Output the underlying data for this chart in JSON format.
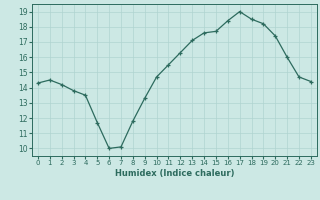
{
  "x": [
    0,
    1,
    2,
    3,
    4,
    5,
    6,
    7,
    8,
    9,
    10,
    11,
    12,
    13,
    14,
    15,
    16,
    17,
    18,
    19,
    20,
    21,
    22,
    23
  ],
  "y": [
    14.3,
    14.5,
    14.2,
    13.8,
    13.5,
    11.7,
    10.0,
    10.1,
    11.8,
    13.3,
    14.7,
    15.5,
    16.3,
    17.1,
    17.6,
    17.7,
    18.4,
    19.0,
    18.5,
    18.2,
    17.4,
    16.0,
    14.7,
    14.4
  ],
  "xlabel": "Humidex (Indice chaleur)",
  "xlim": [
    -0.5,
    23.5
  ],
  "ylim": [
    9.5,
    19.5
  ],
  "yticks": [
    10,
    11,
    12,
    13,
    14,
    15,
    16,
    17,
    18,
    19
  ],
  "xticks": [
    0,
    1,
    2,
    3,
    4,
    5,
    6,
    7,
    8,
    9,
    10,
    11,
    12,
    13,
    14,
    15,
    16,
    17,
    18,
    19,
    20,
    21,
    22,
    23
  ],
  "line_color": "#2d6b5e",
  "marker": "+",
  "bg_color": "#cce8e4",
  "grid_color": "#b0d4d0",
  "label_color": "#2d6b5e",
  "tick_color": "#2d6b5e"
}
